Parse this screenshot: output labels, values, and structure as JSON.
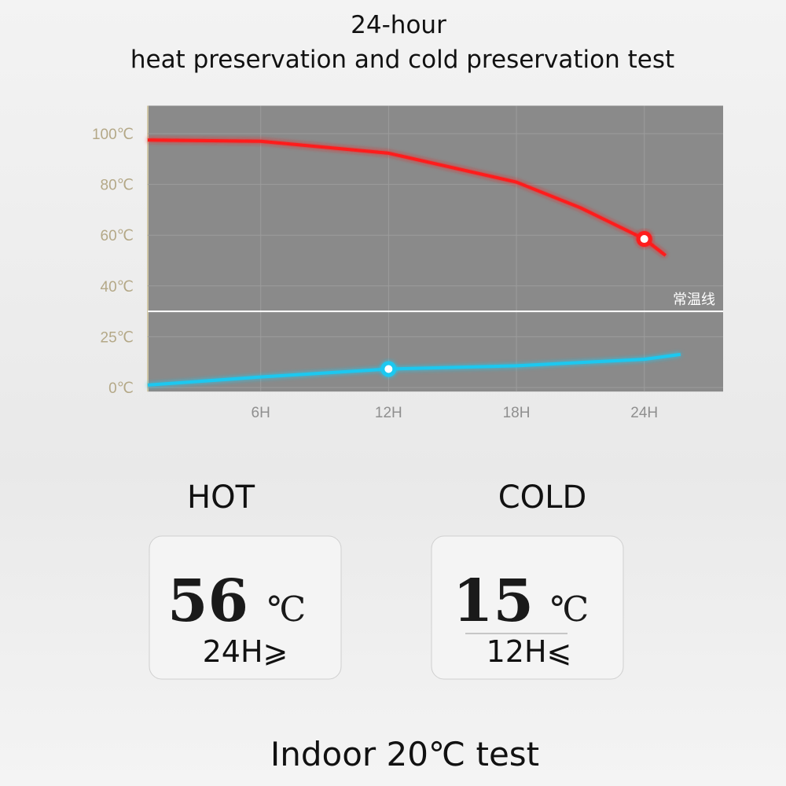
{
  "title": [
    "24-hour",
    "heat preservation and cold preservation test"
  ],
  "chart_data": {
    "type": "line",
    "x_ticks_unit_note": null,
    "xlim": [
      0.7,
      27.7
    ],
    "xticks": [
      {
        "value": 6,
        "label": "6H"
      },
      {
        "value": 12,
        "label": "12H"
      },
      {
        "value": 18,
        "label": "18H"
      },
      {
        "value": 24,
        "label": "24H"
      }
    ],
    "ylim": [
      -2,
      111
    ],
    "yticks": [
      {
        "value": 0,
        "label": "0℃"
      },
      {
        "value": 25,
        "label": "25℃"
      },
      {
        "value": 40,
        "label": "40℃"
      },
      {
        "value": 60,
        "label": "60℃"
      },
      {
        "value": 80,
        "label": "80℃"
      },
      {
        "value": 100,
        "label": "100℃"
      }
    ],
    "grid": true,
    "reference": {
      "value": 32.5,
      "label": "常温线"
    },
    "series": [
      {
        "color": "#ff1a1a",
        "x": [
          0.7,
          6,
          12,
          18,
          21,
          24,
          25
        ],
        "values": [
          97.5,
          97,
          92.3,
          80.9,
          70.8,
          58.5,
          52
        ],
        "highlight": 5
      },
      {
        "color": "#1ec8f0",
        "x": [
          0.7,
          6,
          12,
          18,
          24,
          25.7
        ],
        "values": [
          1.2,
          5.2,
          9.1,
          10.7,
          13.9,
          16.3
        ],
        "highlight": 2
      }
    ]
  },
  "cards": [
    {
      "label": "HOT",
      "value": "56",
      "unit": "℃",
      "time": "24H⩾"
    },
    {
      "label": "COLD",
      "value": "15",
      "unit": "℃",
      "time": "12H⩽"
    }
  ],
  "footer": "Indoor 20℃ test"
}
